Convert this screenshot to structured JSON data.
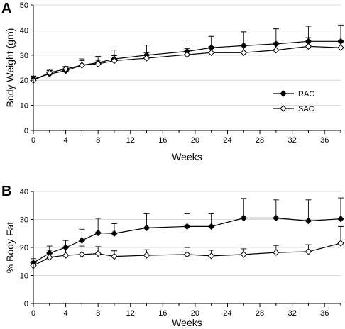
{
  "chart_data": [
    {
      "panel": "A",
      "type": "line",
      "xlabel": "Weeks",
      "ylabel": "Body Weight (gm)",
      "xlim": [
        0,
        38
      ],
      "ylim": [
        0,
        50
      ],
      "xticks": [
        0,
        4,
        8,
        12,
        16,
        20,
        24,
        28,
        32,
        36
      ],
      "yticks": [
        0,
        10,
        20,
        30,
        40,
        50
      ],
      "legend_position": "right-center",
      "series": [
        {
          "name": "RAC",
          "marker": "filled-diamond",
          "x": [
            0,
            2,
            4,
            6,
            8,
            10,
            14,
            19,
            22,
            26,
            30,
            34,
            38
          ],
          "y": [
            20.5,
            22.5,
            23.8,
            26.0,
            27.0,
            28.5,
            30.0,
            31.5,
            33.0,
            33.8,
            34.5,
            35.5,
            35.5
          ],
          "err": [
            1.2,
            1.5,
            1.4,
            2.5,
            2.5,
            3.5,
            4.0,
            4.5,
            4.5,
            5.5,
            6.0,
            6.0,
            6.5
          ]
        },
        {
          "name": "SAC",
          "marker": "open-diamond",
          "x": [
            0,
            2,
            4,
            6,
            8,
            10,
            14,
            19,
            22,
            26,
            30,
            34,
            38
          ],
          "y": [
            20.0,
            23.0,
            24.5,
            26.0,
            26.5,
            27.8,
            28.8,
            30.2,
            31.0,
            31.0,
            32.0,
            33.5,
            33.0
          ],
          "err": [
            1.5,
            0.8,
            1.0,
            1.8,
            1.5,
            2.0,
            2.2,
            2.5,
            2.5,
            3.0,
            3.0,
            3.5,
            3.0
          ]
        }
      ]
    },
    {
      "panel": "B",
      "type": "line",
      "xlabel": "Weeks",
      "ylabel": "% Body Fat",
      "xlim": [
        0,
        38
      ],
      "ylim": [
        0,
        40
      ],
      "xticks": [
        0,
        4,
        8,
        12,
        16,
        20,
        24,
        28,
        32,
        36
      ],
      "yticks": [
        0,
        10,
        20,
        30,
        40
      ],
      "series": [
        {
          "name": "RAC",
          "marker": "filled-diamond",
          "x": [
            0,
            2,
            4,
            6,
            8,
            10,
            14,
            19,
            22,
            26,
            30,
            34,
            38
          ],
          "y": [
            14.5,
            18.0,
            20.0,
            22.5,
            25.2,
            25.0,
            27.0,
            27.5,
            27.5,
            30.5,
            30.5,
            29.5,
            30.2
          ],
          "err": [
            1.5,
            2.5,
            2.5,
            4.0,
            5.2,
            3.5,
            5.0,
            4.5,
            4.5,
            7.0,
            6.5,
            7.5,
            7.5
          ]
        },
        {
          "name": "SAC",
          "marker": "open-diamond",
          "x": [
            0,
            2,
            4,
            6,
            8,
            10,
            14,
            19,
            22,
            26,
            30,
            34,
            38
          ],
          "y": [
            13.5,
            16.5,
            17.2,
            17.5,
            17.8,
            16.8,
            17.2,
            17.5,
            17.0,
            17.5,
            18.2,
            18.5,
            21.5
          ],
          "err": [
            1.5,
            2.5,
            3.0,
            3.0,
            2.5,
            2.0,
            2.0,
            2.5,
            2.0,
            2.0,
            2.5,
            2.5,
            6.0
          ]
        }
      ]
    }
  ]
}
